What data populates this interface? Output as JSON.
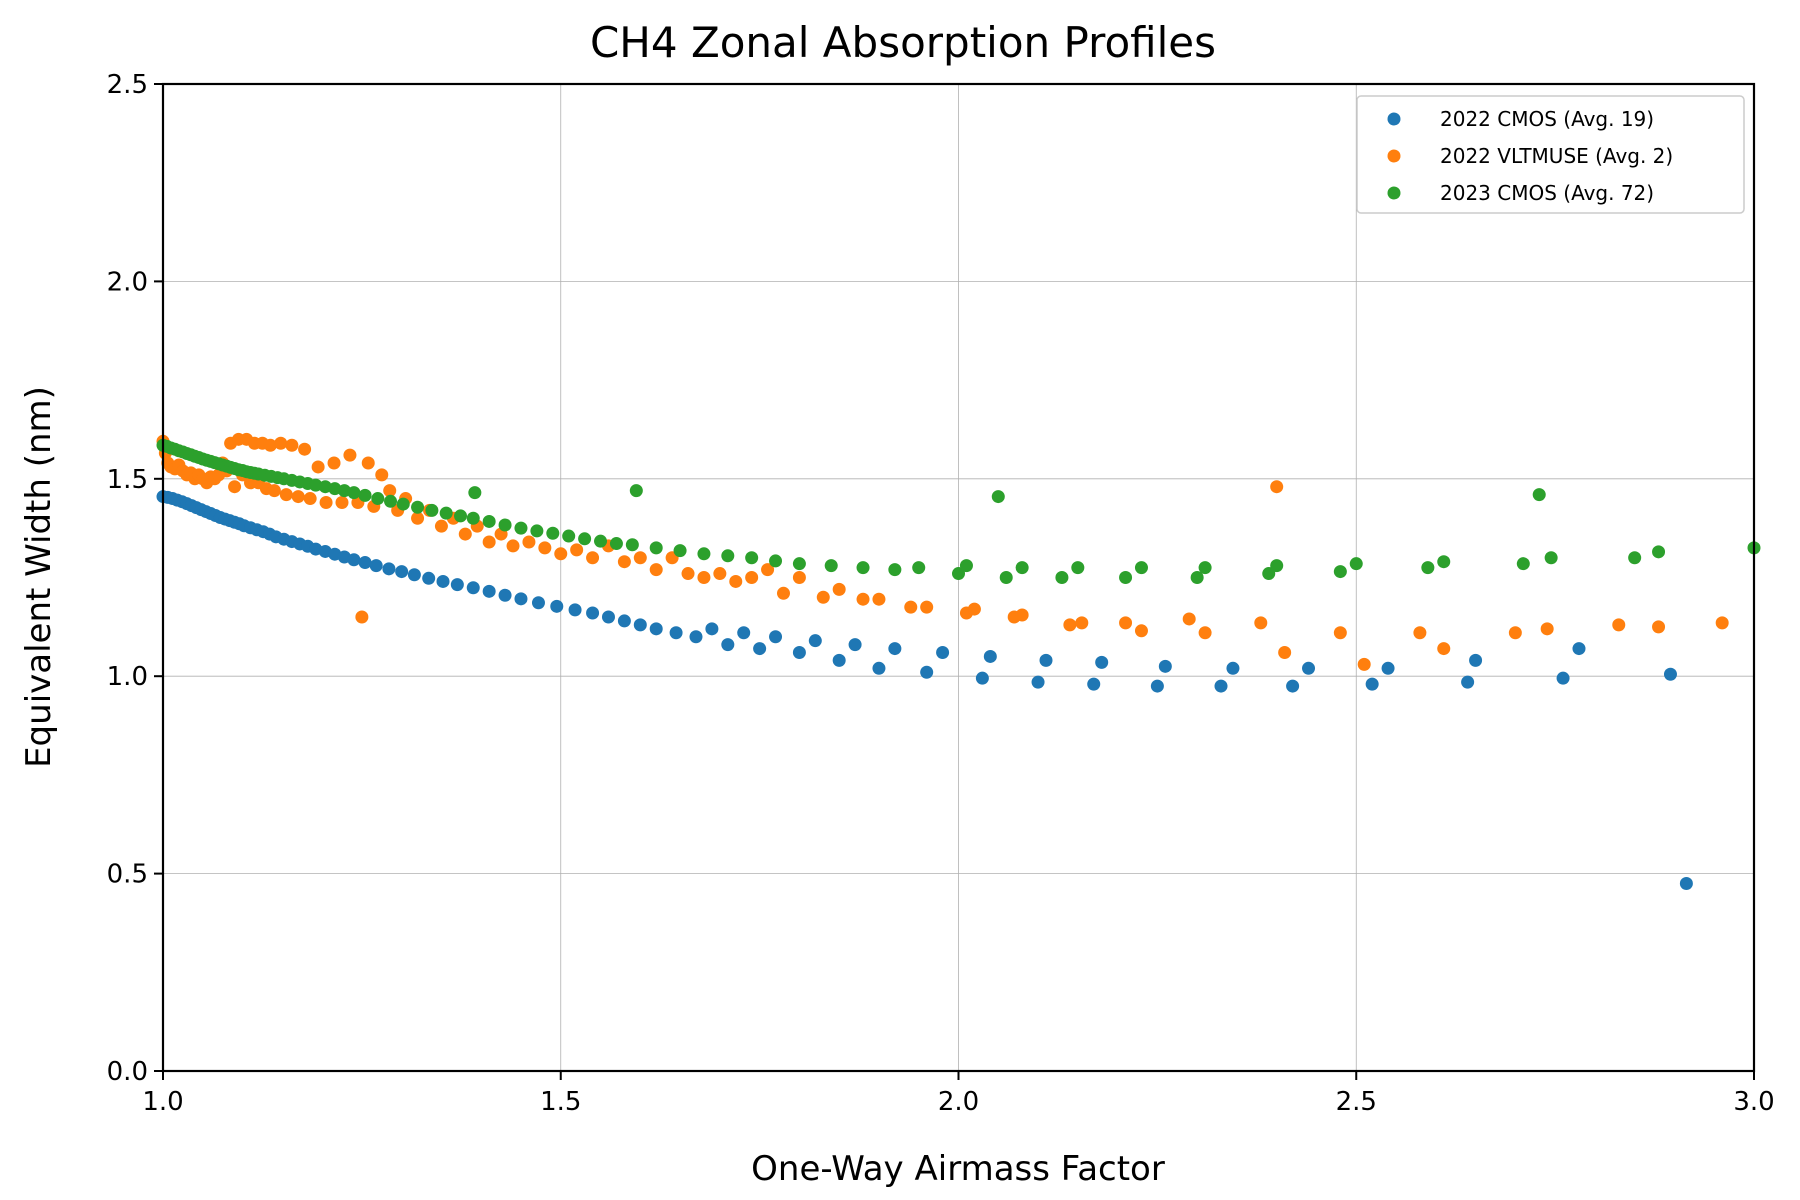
{
  "chart_data": {
    "type": "scatter",
    "title": "CH4 Zonal Absorption Profiles",
    "xlabel": "One-Way Airmass Factor",
    "ylabel": "Equivalent Width (nm)",
    "xlim": [
      1.0,
      3.0
    ],
    "ylim": [
      0.0,
      2.5
    ],
    "xticks": [
      1.0,
      1.5,
      2.0,
      2.5,
      3.0
    ],
    "yticks": [
      0.0,
      0.5,
      1.0,
      1.5,
      2.0,
      2.5
    ],
    "xtick_labels": [
      "1.0",
      "1.5",
      "2.0",
      "2.5",
      "3.0"
    ],
    "ytick_labels": [
      "0.0",
      "0.5",
      "1.0",
      "1.5",
      "2.0",
      "2.5"
    ],
    "grid": true,
    "legend_position": "top-right",
    "series": [
      {
        "name": "2022 CMOS (Avg. 19)",
        "color": "#1f77b4",
        "points": [
          [
            1.0,
            1.455
          ],
          [
            1.006,
            1.453
          ],
          [
            1.012,
            1.45
          ],
          [
            1.018,
            1.446
          ],
          [
            1.024,
            1.442
          ],
          [
            1.03,
            1.437
          ],
          [
            1.036,
            1.432
          ],
          [
            1.042,
            1.427
          ],
          [
            1.048,
            1.422
          ],
          [
            1.054,
            1.417
          ],
          [
            1.06,
            1.412
          ],
          [
            1.066,
            1.407
          ],
          [
            1.072,
            1.402
          ],
          [
            1.078,
            1.398
          ],
          [
            1.084,
            1.394
          ],
          [
            1.09,
            1.39
          ],
          [
            1.096,
            1.386
          ],
          [
            1.102,
            1.381
          ],
          [
            1.11,
            1.376
          ],
          [
            1.118,
            1.371
          ],
          [
            1.126,
            1.366
          ],
          [
            1.134,
            1.36
          ],
          [
            1.142,
            1.353
          ],
          [
            1.152,
            1.347
          ],
          [
            1.162,
            1.341
          ],
          [
            1.172,
            1.335
          ],
          [
            1.182,
            1.329
          ],
          [
            1.192,
            1.322
          ],
          [
            1.204,
            1.316
          ],
          [
            1.216,
            1.309
          ],
          [
            1.228,
            1.302
          ],
          [
            1.24,
            1.295
          ],
          [
            1.254,
            1.288
          ],
          [
            1.268,
            1.28
          ],
          [
            1.284,
            1.272
          ],
          [
            1.3,
            1.265
          ],
          [
            1.316,
            1.257
          ],
          [
            1.334,
            1.248
          ],
          [
            1.352,
            1.24
          ],
          [
            1.37,
            1.232
          ],
          [
            1.39,
            1.224
          ],
          [
            1.41,
            1.215
          ],
          [
            1.43,
            1.205
          ],
          [
            1.45,
            1.196
          ],
          [
            1.472,
            1.186
          ],
          [
            1.495,
            1.177
          ],
          [
            1.518,
            1.168
          ],
          [
            1.54,
            1.16
          ],
          [
            1.56,
            1.15
          ],
          [
            1.58,
            1.14
          ],
          [
            1.6,
            1.13
          ],
          [
            1.62,
            1.12
          ],
          [
            1.645,
            1.11
          ],
          [
            1.67,
            1.1
          ],
          [
            1.69,
            1.12
          ],
          [
            1.71,
            1.08
          ],
          [
            1.73,
            1.11
          ],
          [
            1.75,
            1.07
          ],
          [
            1.77,
            1.1
          ],
          [
            1.8,
            1.06
          ],
          [
            1.82,
            1.09
          ],
          [
            1.85,
            1.04
          ],
          [
            1.87,
            1.08
          ],
          [
            1.9,
            1.02
          ],
          [
            1.92,
            1.07
          ],
          [
            1.96,
            1.01
          ],
          [
            1.98,
            1.06
          ],
          [
            2.03,
            0.995
          ],
          [
            2.04,
            1.05
          ],
          [
            2.1,
            0.985
          ],
          [
            2.11,
            1.04
          ],
          [
            2.17,
            0.98
          ],
          [
            2.18,
            1.035
          ],
          [
            2.25,
            0.975
          ],
          [
            2.26,
            1.025
          ],
          [
            2.33,
            0.975
          ],
          [
            2.345,
            1.02
          ],
          [
            2.42,
            0.975
          ],
          [
            2.44,
            1.02
          ],
          [
            2.52,
            0.98
          ],
          [
            2.54,
            1.02
          ],
          [
            2.64,
            0.985
          ],
          [
            2.65,
            1.04
          ],
          [
            2.76,
            0.995
          ],
          [
            2.78,
            1.07
          ],
          [
            2.895,
            1.005
          ],
          [
            2.915,
            0.475
          ]
        ]
      },
      {
        "name": "2022 VLTMUSE (Avg. 2)",
        "color": "#ff7f0e",
        "points": [
          [
            1.0,
            1.595
          ],
          [
            1.003,
            1.565
          ],
          [
            1.006,
            1.54
          ],
          [
            1.01,
            1.53
          ],
          [
            1.015,
            1.525
          ],
          [
            1.02,
            1.535
          ],
          [
            1.025,
            1.52
          ],
          [
            1.03,
            1.51
          ],
          [
            1.035,
            1.515
          ],
          [
            1.04,
            1.5
          ],
          [
            1.045,
            1.51
          ],
          [
            1.05,
            1.5
          ],
          [
            1.055,
            1.49
          ],
          [
            1.06,
            1.505
          ],
          [
            1.065,
            1.5
          ],
          [
            1.07,
            1.51
          ],
          [
            1.075,
            1.54
          ],
          [
            1.08,
            1.52
          ],
          [
            1.085,
            1.59
          ],
          [
            1.09,
            1.48
          ],
          [
            1.095,
            1.6
          ],
          [
            1.1,
            1.51
          ],
          [
            1.105,
            1.6
          ],
          [
            1.11,
            1.49
          ],
          [
            1.115,
            1.59
          ],
          [
            1.12,
            1.49
          ],
          [
            1.125,
            1.59
          ],
          [
            1.13,
            1.475
          ],
          [
            1.135,
            1.585
          ],
          [
            1.14,
            1.47
          ],
          [
            1.148,
            1.59
          ],
          [
            1.155,
            1.46
          ],
          [
            1.162,
            1.585
          ],
          [
            1.17,
            1.455
          ],
          [
            1.178,
            1.575
          ],
          [
            1.185,
            1.45
          ],
          [
            1.195,
            1.53
          ],
          [
            1.205,
            1.44
          ],
          [
            1.215,
            1.54
          ],
          [
            1.225,
            1.44
          ],
          [
            1.235,
            1.56
          ],
          [
            1.245,
            1.44
          ],
          [
            1.25,
            1.15
          ],
          [
            1.258,
            1.54
          ],
          [
            1.265,
            1.43
          ],
          [
            1.275,
            1.51
          ],
          [
            1.285,
            1.47
          ],
          [
            1.295,
            1.42
          ],
          [
            1.305,
            1.45
          ],
          [
            1.32,
            1.4
          ],
          [
            1.335,
            1.42
          ],
          [
            1.35,
            1.38
          ],
          [
            1.365,
            1.4
          ],
          [
            1.38,
            1.36
          ],
          [
            1.395,
            1.38
          ],
          [
            1.41,
            1.34
          ],
          [
            1.425,
            1.36
          ],
          [
            1.44,
            1.33
          ],
          [
            1.46,
            1.34
          ],
          [
            1.48,
            1.325
          ],
          [
            1.5,
            1.31
          ],
          [
            1.52,
            1.32
          ],
          [
            1.54,
            1.3
          ],
          [
            1.56,
            1.33
          ],
          [
            1.58,
            1.29
          ],
          [
            1.6,
            1.3
          ],
          [
            1.62,
            1.27
          ],
          [
            1.64,
            1.3
          ],
          [
            1.66,
            1.26
          ],
          [
            1.68,
            1.25
          ],
          [
            1.7,
            1.26
          ],
          [
            1.72,
            1.24
          ],
          [
            1.74,
            1.25
          ],
          [
            1.76,
            1.27
          ],
          [
            1.78,
            1.21
          ],
          [
            1.8,
            1.25
          ],
          [
            1.83,
            1.2
          ],
          [
            1.85,
            1.22
          ],
          [
            1.88,
            1.195
          ],
          [
            1.9,
            1.195
          ],
          [
            1.94,
            1.175
          ],
          [
            1.96,
            1.175
          ],
          [
            2.01,
            1.16
          ],
          [
            2.02,
            1.17
          ],
          [
            2.07,
            1.15
          ],
          [
            2.08,
            1.155
          ],
          [
            2.14,
            1.13
          ],
          [
            2.155,
            1.135
          ],
          [
            2.21,
            1.135
          ],
          [
            2.23,
            1.115
          ],
          [
            2.29,
            1.145
          ],
          [
            2.31,
            1.11
          ],
          [
            2.38,
            1.135
          ],
          [
            2.4,
            1.48
          ],
          [
            2.41,
            1.06
          ],
          [
            2.48,
            1.11
          ],
          [
            2.51,
            1.03
          ],
          [
            2.58,
            1.11
          ],
          [
            2.61,
            1.07
          ],
          [
            2.7,
            1.11
          ],
          [
            2.74,
            1.12
          ],
          [
            2.83,
            1.13
          ],
          [
            2.88,
            1.125
          ],
          [
            2.96,
            1.135
          ]
        ]
      },
      {
        "name": "2023 CMOS (Avg. 72)",
        "color": "#2ca02c",
        "points": [
          [
            1.0,
            1.585
          ],
          [
            1.005,
            1.582
          ],
          [
            1.01,
            1.578
          ],
          [
            1.015,
            1.575
          ],
          [
            1.02,
            1.571
          ],
          [
            1.025,
            1.568
          ],
          [
            1.03,
            1.564
          ],
          [
            1.035,
            1.561
          ],
          [
            1.04,
            1.557
          ],
          [
            1.045,
            1.554
          ],
          [
            1.05,
            1.55
          ],
          [
            1.055,
            1.547
          ],
          [
            1.06,
            1.544
          ],
          [
            1.065,
            1.541
          ],
          [
            1.07,
            1.538
          ],
          [
            1.075,
            1.535
          ],
          [
            1.08,
            1.532
          ],
          [
            1.085,
            1.529
          ],
          [
            1.09,
            1.526
          ],
          [
            1.095,
            1.523
          ],
          [
            1.1,
            1.521
          ],
          [
            1.105,
            1.518
          ],
          [
            1.11,
            1.516
          ],
          [
            1.115,
            1.514
          ],
          [
            1.12,
            1.512
          ],
          [
            1.128,
            1.509
          ],
          [
            1.136,
            1.506
          ],
          [
            1.144,
            1.503
          ],
          [
            1.152,
            1.5
          ],
          [
            1.162,
            1.496
          ],
          [
            1.172,
            1.492
          ],
          [
            1.182,
            1.488
          ],
          [
            1.192,
            1.484
          ],
          [
            1.204,
            1.48
          ],
          [
            1.216,
            1.475
          ],
          [
            1.228,
            1.47
          ],
          [
            1.24,
            1.465
          ],
          [
            1.254,
            1.458
          ],
          [
            1.27,
            1.45
          ],
          [
            1.286,
            1.443
          ],
          [
            1.302,
            1.436
          ],
          [
            1.32,
            1.428
          ],
          [
            1.338,
            1.42
          ],
          [
            1.356,
            1.413
          ],
          [
            1.374,
            1.406
          ],
          [
            1.39,
            1.4
          ],
          [
            1.392,
            1.465
          ],
          [
            1.41,
            1.392
          ],
          [
            1.43,
            1.383
          ],
          [
            1.45,
            1.375
          ],
          [
            1.47,
            1.368
          ],
          [
            1.49,
            1.362
          ],
          [
            1.51,
            1.355
          ],
          [
            1.53,
            1.348
          ],
          [
            1.55,
            1.342
          ],
          [
            1.57,
            1.336
          ],
          [
            1.59,
            1.333
          ],
          [
            1.595,
            1.47
          ],
          [
            1.62,
            1.325
          ],
          [
            1.65,
            1.318
          ],
          [
            1.68,
            1.31
          ],
          [
            1.71,
            1.305
          ],
          [
            1.74,
            1.3
          ],
          [
            1.77,
            1.292
          ],
          [
            1.8,
            1.285
          ],
          [
            1.84,
            1.28
          ],
          [
            1.88,
            1.275
          ],
          [
            1.92,
            1.27
          ],
          [
            1.95,
            1.275
          ],
          [
            2.0,
            1.26
          ],
          [
            2.01,
            1.28
          ],
          [
            2.05,
            1.455
          ],
          [
            2.06,
            1.25
          ],
          [
            2.08,
            1.275
          ],
          [
            2.13,
            1.25
          ],
          [
            2.15,
            1.275
          ],
          [
            2.21,
            1.25
          ],
          [
            2.23,
            1.275
          ],
          [
            2.3,
            1.25
          ],
          [
            2.31,
            1.275
          ],
          [
            2.39,
            1.26
          ],
          [
            2.4,
            1.28
          ],
          [
            2.48,
            1.265
          ],
          [
            2.5,
            1.285
          ],
          [
            2.59,
            1.275
          ],
          [
            2.61,
            1.29
          ],
          [
            2.71,
            1.285
          ],
          [
            2.73,
            1.46
          ],
          [
            2.745,
            1.3
          ],
          [
            2.85,
            1.3
          ],
          [
            2.88,
            1.315
          ],
          [
            3.0,
            1.325
          ]
        ]
      }
    ]
  }
}
